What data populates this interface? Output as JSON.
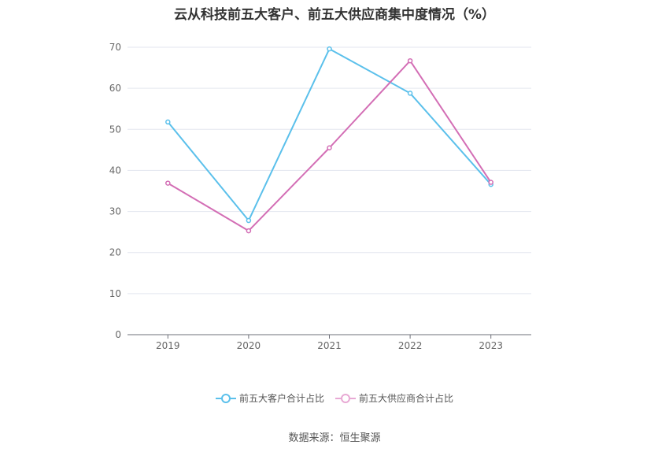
{
  "chart_data": {
    "type": "line",
    "title": "云从科技前五大客户、前五大供应商集中度情况（%）",
    "categories": [
      "2019",
      "2020",
      "2021",
      "2022",
      "2023"
    ],
    "series": [
      {
        "name": "前五大客户合计占比",
        "values": [
          51.8,
          27.8,
          69.6,
          58.8,
          36.6
        ],
        "color": "#5bc0eb"
      },
      {
        "name": "前五大供应商合计占比",
        "values": [
          36.9,
          25.3,
          45.5,
          66.7,
          37.1
        ],
        "color": "#d36eb5"
      }
    ],
    "ylim": [
      0,
      70
    ],
    "yticks": [
      "0",
      "10",
      "20",
      "30",
      "40",
      "50",
      "60",
      "70"
    ],
    "grid": true,
    "legend_position": "bottom"
  },
  "source": "数据来源：恒生聚源"
}
